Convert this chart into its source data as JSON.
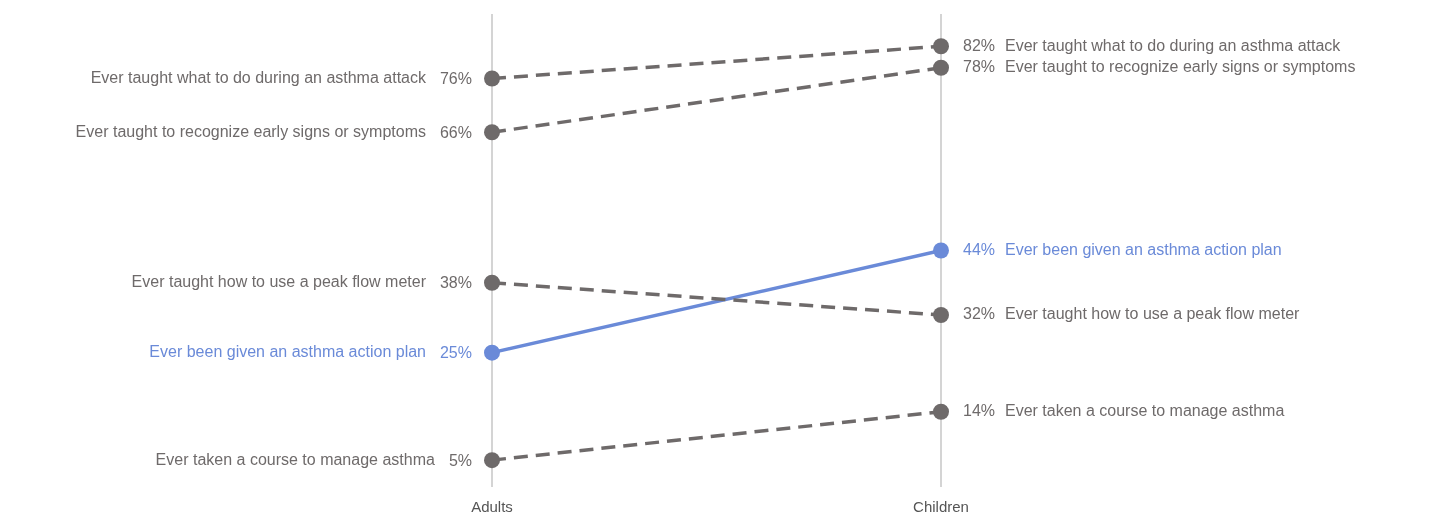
{
  "chart_data": {
    "type": "line",
    "categories": [
      "Adults",
      "Children"
    ],
    "ylim": [
      0,
      88
    ],
    "grid": "x",
    "marker": "circle",
    "legend": false,
    "series": [
      {
        "name": "Ever taught what to do during an asthma attack",
        "color": "#6e6a6a",
        "values": [
          76,
          82
        ],
        "value_labels": [
          "76%",
          "82%"
        ],
        "line_style": "dashed"
      },
      {
        "name": "Ever taught to recognize early signs or symptoms",
        "color": "#6e6a6a",
        "values": [
          66,
          78
        ],
        "value_labels": [
          "66%",
          "78%"
        ],
        "line_style": "dashed"
      },
      {
        "name": "Ever taught how to use a peak flow meter",
        "color": "#6e6a6a",
        "values": [
          38,
          32
        ],
        "value_labels": [
          "38%",
          "32%"
        ],
        "line_style": "dashed"
      },
      {
        "name": "Ever been given an asthma action plan",
        "color": "#6a8ad8",
        "values": [
          25,
          44
        ],
        "value_labels": [
          "25%",
          "44%"
        ],
        "line_style": "solid"
      },
      {
        "name": "Ever taken a course to manage asthma",
        "color": "#6e6a6a",
        "values": [
          5,
          14
        ],
        "value_labels": [
          "5%",
          "14%"
        ],
        "line_style": "dashed"
      }
    ]
  }
}
